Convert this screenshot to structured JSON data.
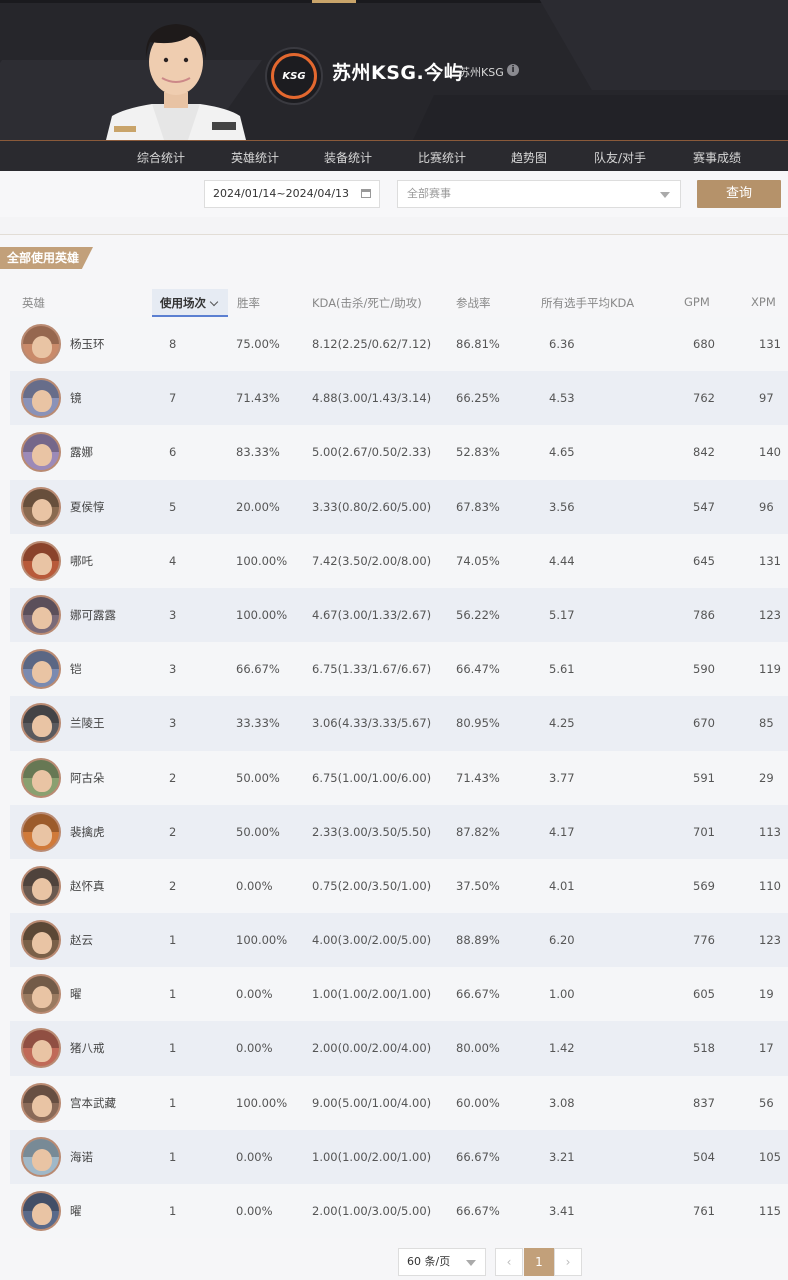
{
  "header": {
    "player_name": "苏州KSG.今屿",
    "team_tag": "苏州KSG",
    "team_logo_text": "KSG",
    "info_icon": "i"
  },
  "nav": {
    "items": [
      "综合统计",
      "英雄统计",
      "装备统计",
      "比赛统计",
      "趋势图",
      "队友/对手",
      "赛事成绩"
    ]
  },
  "filter": {
    "date_range": "2024/01/14~2024/04/13",
    "event_placeholder": "全部赛事",
    "query_label": "查询"
  },
  "section": {
    "title": "全部使用英雄"
  },
  "table": {
    "columns": [
      "英雄",
      "使用场次",
      "胜率",
      "KDA(击杀/死亡/助攻)",
      "参战率",
      "所有选手平均KDA",
      "GPM",
      "XPM"
    ],
    "rows": [
      {
        "hero": "杨玉环",
        "games": "8",
        "winrate": "75.00%",
        "kda": "8.12(2.25/0.62/7.12)",
        "participation": "86.81%",
        "avg_kda": "6.36",
        "gpm": "680",
        "xpm": "131",
        "color": "#c98a6a"
      },
      {
        "hero": "镜",
        "games": "7",
        "winrate": "71.43%",
        "kda": "4.88(3.00/1.43/3.14)",
        "participation": "66.25%",
        "avg_kda": "4.53",
        "gpm": "762",
        "xpm": "97",
        "color": "#8a92b8"
      },
      {
        "hero": "露娜",
        "games": "6",
        "winrate": "83.33%",
        "kda": "5.00(2.67/0.50/2.33)",
        "participation": "52.83%",
        "avg_kda": "4.65",
        "gpm": "842",
        "xpm": "140",
        "color": "#9c8ab8"
      },
      {
        "hero": "夏侯惇",
        "games": "5",
        "winrate": "20.00%",
        "kda": "3.33(0.80/2.60/5.00)",
        "participation": "67.83%",
        "avg_kda": "3.56",
        "gpm": "547",
        "xpm": "96",
        "color": "#8a6a50"
      },
      {
        "hero": "哪吒",
        "games": "4",
        "winrate": "100.00%",
        "kda": "7.42(3.50/2.00/8.00)",
        "participation": "74.05%",
        "avg_kda": "4.44",
        "gpm": "645",
        "xpm": "131",
        "color": "#b85a3a"
      },
      {
        "hero": "娜可露露",
        "games": "3",
        "winrate": "100.00%",
        "kda": "4.67(3.00/1.33/2.67)",
        "participation": "56.22%",
        "avg_kda": "5.17",
        "gpm": "786",
        "xpm": "123",
        "color": "#7a6a78"
      },
      {
        "hero": "铠",
        "games": "3",
        "winrate": "66.67%",
        "kda": "6.75(1.33/1.67/6.67)",
        "participation": "66.47%",
        "avg_kda": "5.61",
        "gpm": "590",
        "xpm": "119",
        "color": "#7a8ab0"
      },
      {
        "hero": "兰陵王",
        "games": "3",
        "winrate": "33.33%",
        "kda": "3.06(4.33/3.33/5.67)",
        "participation": "80.95%",
        "avg_kda": "4.25",
        "gpm": "670",
        "xpm": "85",
        "color": "#5a5a5e"
      },
      {
        "hero": "阿古朵",
        "games": "2",
        "winrate": "50.00%",
        "kda": "6.75(1.00/1.00/6.00)",
        "participation": "71.43%",
        "avg_kda": "3.77",
        "gpm": "591",
        "xpm": "29",
        "color": "#8aa070"
      },
      {
        "hero": "裴擒虎",
        "games": "2",
        "winrate": "50.00%",
        "kda": "2.33(3.00/3.50/5.50)",
        "participation": "87.82%",
        "avg_kda": "4.17",
        "gpm": "701",
        "xpm": "113",
        "color": "#d07a3a"
      },
      {
        "hero": "赵怀真",
        "games": "2",
        "winrate": "0.00%",
        "kda": "0.75(2.00/3.50/1.00)",
        "participation": "37.50%",
        "avg_kda": "4.01",
        "gpm": "569",
        "xpm": "110",
        "color": "#6a5a50"
      },
      {
        "hero": "赵云",
        "games": "1",
        "winrate": "100.00%",
        "kda": "4.00(3.00/2.00/5.00)",
        "participation": "88.89%",
        "avg_kda": "6.20",
        "gpm": "776",
        "xpm": "123",
        "color": "#7a6048"
      },
      {
        "hero": "曜",
        "games": "1",
        "winrate": "0.00%",
        "kda": "1.00(1.00/2.00/1.00)",
        "participation": "66.67%",
        "avg_kda": "1.00",
        "gpm": "605",
        "xpm": "19",
        "color": "#9a7a60"
      },
      {
        "hero": "猪八戒",
        "games": "1",
        "winrate": "0.00%",
        "kda": "2.00(0.00/2.00/4.00)",
        "participation": "80.00%",
        "avg_kda": "1.42",
        "gpm": "518",
        "xpm": "17",
        "color": "#c06a58"
      },
      {
        "hero": "宫本武藏",
        "games": "1",
        "winrate": "100.00%",
        "kda": "9.00(5.00/1.00/4.00)",
        "participation": "60.00%",
        "avg_kda": "3.08",
        "gpm": "837",
        "xpm": "56",
        "color": "#8a6a58"
      },
      {
        "hero": "海诺",
        "games": "1",
        "winrate": "0.00%",
        "kda": "1.00(1.00/2.00/1.00)",
        "participation": "66.67%",
        "avg_kda": "3.21",
        "gpm": "504",
        "xpm": "105",
        "color": "#a0b8c8"
      },
      {
        "hero": "曜",
        "games": "1",
        "winrate": "0.00%",
        "kda": "2.00(1.00/3.00/5.00)",
        "participation": "66.67%",
        "avg_kda": "3.41",
        "gpm": "761",
        "xpm": "115",
        "color": "#5a6a8a"
      }
    ]
  },
  "pager": {
    "page_size": "60 条/页",
    "prev": "‹",
    "current": "1",
    "next": "›"
  }
}
